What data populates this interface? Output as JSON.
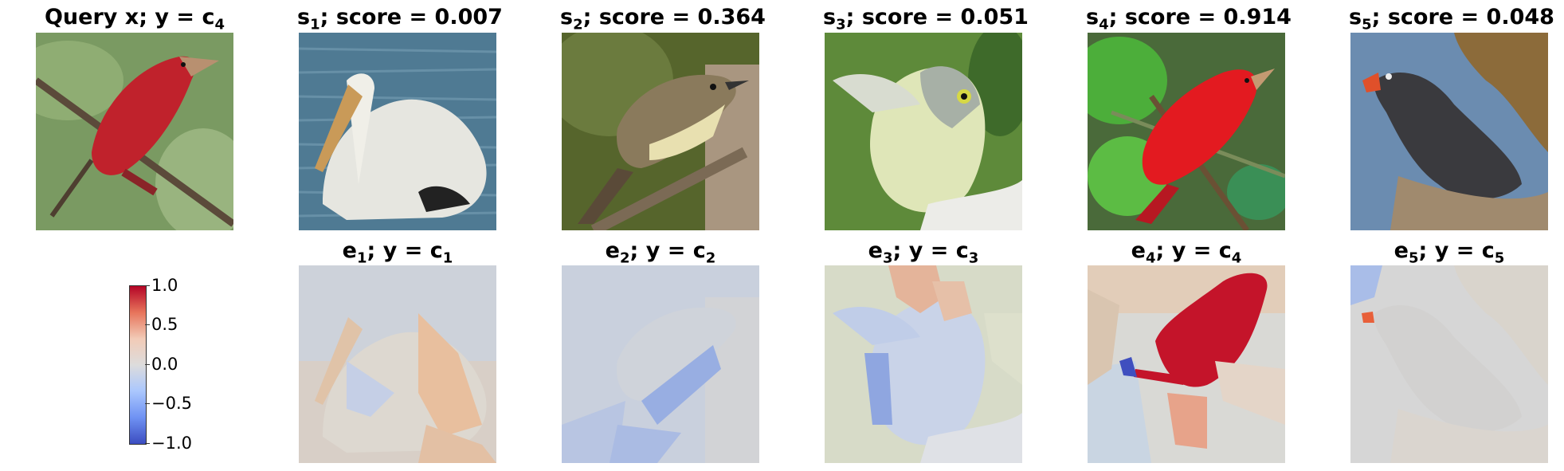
{
  "row1": [
    {
      "name": "Query x",
      "label": "y",
      "class_sub": "4",
      "kind": "query"
    },
    {
      "name": "s",
      "sub": "1",
      "score": "0.007"
    },
    {
      "name": "s",
      "sub": "2",
      "score": "0.364"
    },
    {
      "name": "s",
      "sub": "3",
      "score": "0.051"
    },
    {
      "name": "s",
      "sub": "4",
      "score": "0.914"
    },
    {
      "name": "s",
      "sub": "5",
      "score": "0.048"
    }
  ],
  "row2": [
    {
      "name": "e",
      "sub": "1",
      "class_sub": "1"
    },
    {
      "name": "e",
      "sub": "2",
      "class_sub": "2"
    },
    {
      "name": "e",
      "sub": "3",
      "class_sub": "3"
    },
    {
      "name": "e",
      "sub": "4",
      "class_sub": "4"
    },
    {
      "name": "e",
      "sub": "5",
      "class_sub": "5"
    }
  ],
  "strings": {
    "query_name": "Query x;",
    "y": "y",
    "eq": " = ",
    "c": "c",
    "score_label": "; score = ",
    "semicolon": ";"
  },
  "colorbar": {
    "ticks": [
      "1.0",
      "0.5",
      "0.0",
      "−0.5",
      "−1.0"
    ],
    "colormap": "coolwarm",
    "top_color": "#b40426",
    "bottom_color": "#3b4cc0"
  }
}
